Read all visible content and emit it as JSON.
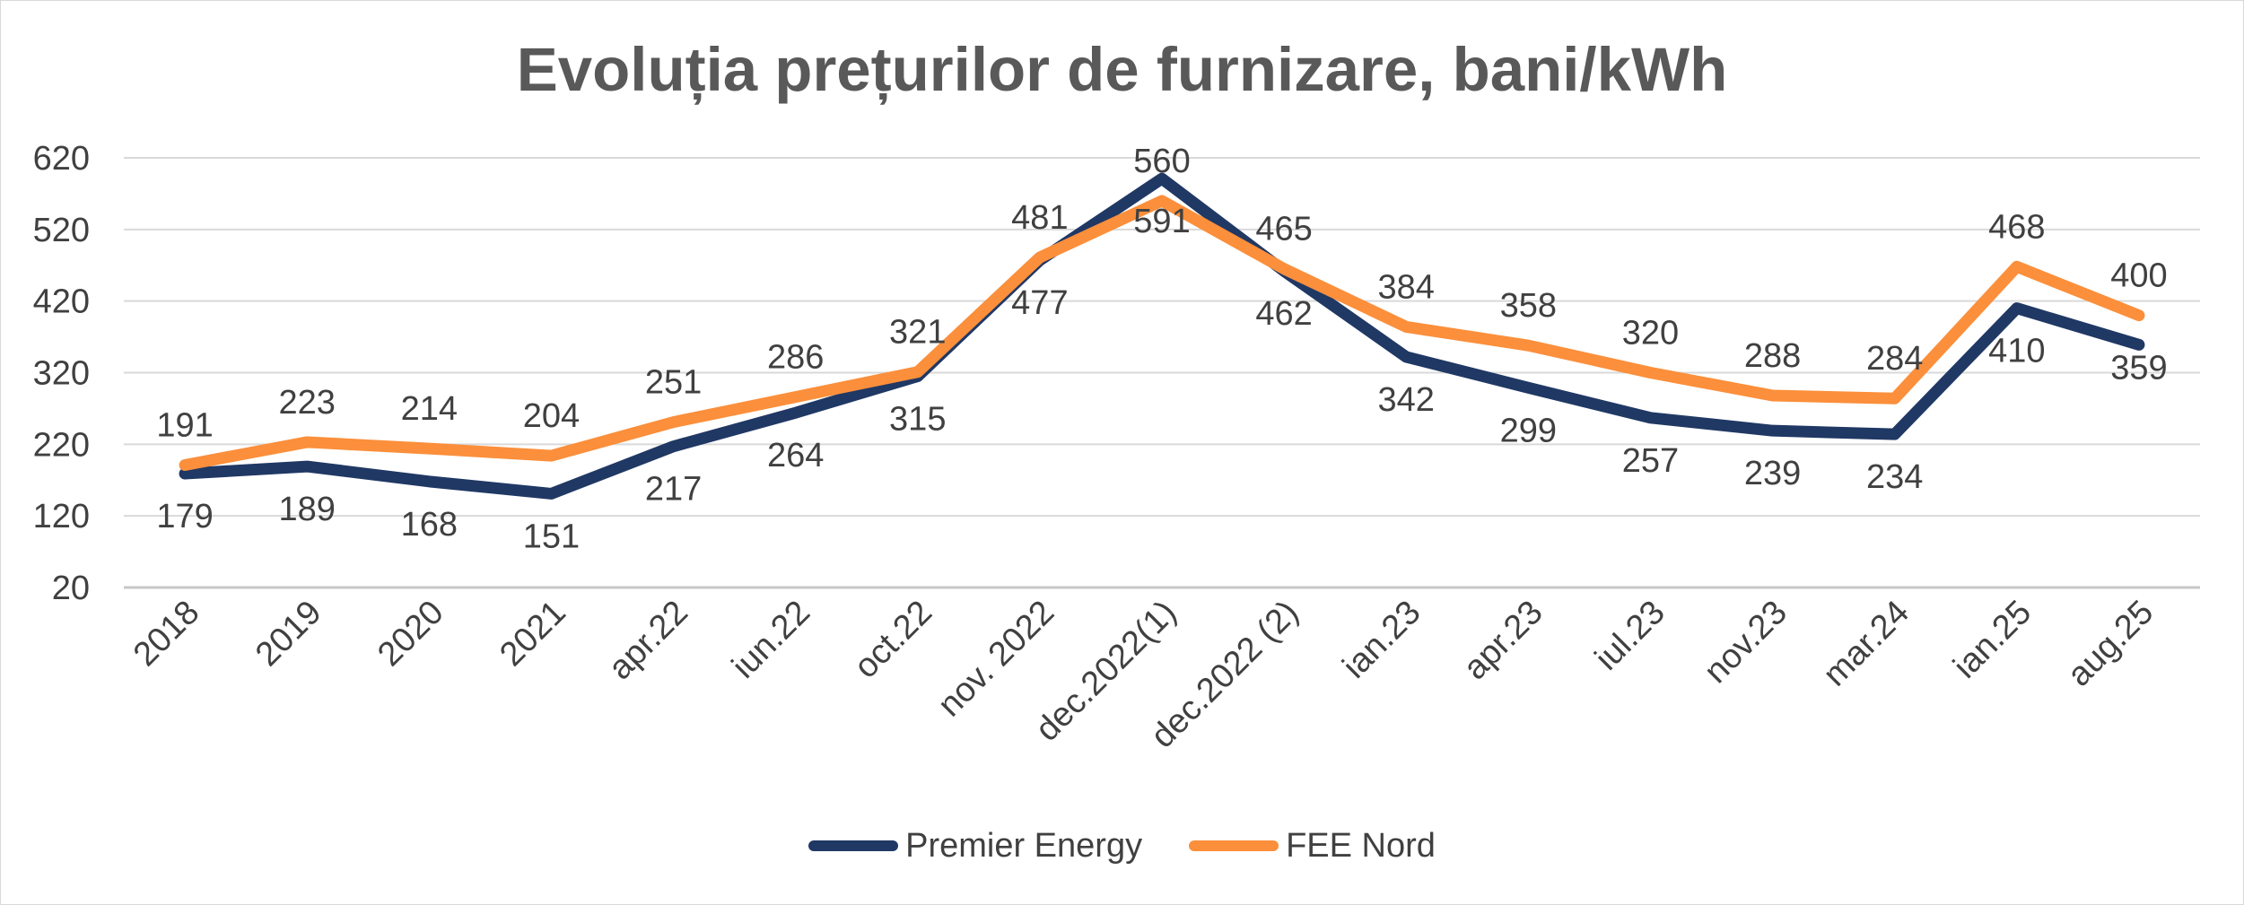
{
  "chart_data": {
    "type": "line",
    "title": "Evoluția prețurilor de furnizare, bani/kWh",
    "categories": [
      "2018",
      "2019",
      "2020",
      "2021",
      "apr.22",
      "iun.22",
      "oct.22",
      "nov. 2022",
      "dec.2022(1)",
      "dec.2022 (2)",
      "ian.23",
      "apr.23",
      "iul.23",
      "nov.23",
      "mar.24",
      "ian.25",
      "aug.25"
    ],
    "y_ticks": [
      20,
      120,
      220,
      320,
      420,
      520,
      620
    ],
    "ylim": [
      20,
      620
    ],
    "grid": true,
    "legend_position": "bottom",
    "series": [
      {
        "name": "Premier Energy",
        "color": "#203864",
        "values": [
          179,
          189,
          168,
          151,
          217,
          264,
          315,
          477,
          591,
          462,
          342,
          299,
          257,
          239,
          234,
          410,
          359
        ]
      },
      {
        "name": "FEE Nord",
        "color": "#fb8f3b",
        "values": [
          191,
          223,
          214,
          204,
          251,
          286,
          321,
          481,
          560,
          465,
          384,
          358,
          320,
          288,
          284,
          468,
          400
        ]
      }
    ],
    "label_placement": {
      "Premier Energy": [
        "below",
        "below",
        "below",
        "below",
        "below",
        "below",
        "below",
        "below",
        "below",
        "below",
        "below",
        "below",
        "below",
        "below",
        "below",
        "below",
        "at"
      ],
      "FEE Nord": [
        "above",
        "above",
        "above",
        "above",
        "above",
        "above",
        "above",
        "above",
        "above",
        "above",
        "above",
        "above",
        "above",
        "above",
        "above",
        "above",
        "above"
      ]
    }
  }
}
